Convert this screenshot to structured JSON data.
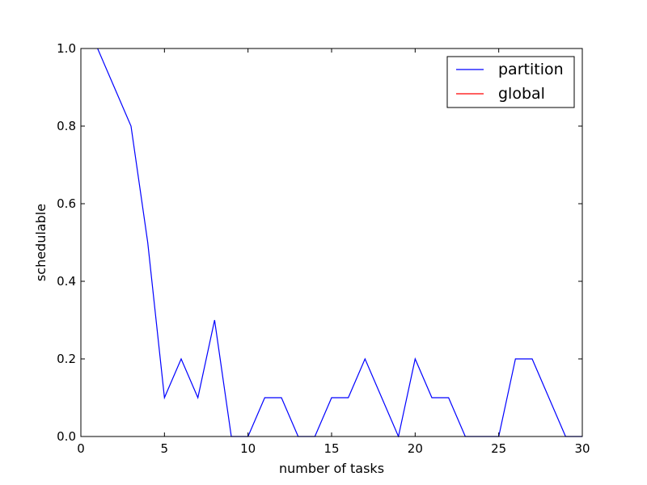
{
  "chart_data": {
    "type": "line",
    "xlabel": "number of tasks",
    "ylabel": "schedulable",
    "xlim": [
      0,
      30
    ],
    "ylim": [
      0.0,
      1.0
    ],
    "x_ticks": [
      "0",
      "5",
      "10",
      "15",
      "20",
      "25",
      "30"
    ],
    "y_ticks": [
      "0.0",
      "0.2",
      "0.4",
      "0.6",
      "0.8",
      "1.0"
    ],
    "grid": false,
    "legend_position": "top-right",
    "series": [
      {
        "name": "partition",
        "color": "#0000ff",
        "x": [
          1,
          2,
          3,
          4,
          5,
          6,
          7,
          8,
          9,
          10,
          11,
          12,
          13,
          14,
          15,
          16,
          17,
          18,
          19,
          20,
          21,
          22,
          23,
          24,
          25,
          26,
          27,
          28,
          29,
          30
        ],
        "y": [
          1.0,
          0.9,
          0.8,
          0.5,
          0.1,
          0.2,
          0.1,
          0.3,
          0.0,
          0.0,
          0.1,
          0.1,
          0.0,
          0.0,
          0.1,
          0.1,
          0.2,
          0.1,
          0.0,
          0.2,
          0.1,
          0.1,
          0.0,
          0.0,
          0.0,
          0.2,
          0.2,
          0.1,
          0.0,
          0.0
        ]
      },
      {
        "name": "global",
        "color": "#ff0000",
        "x": [],
        "y": []
      }
    ]
  }
}
